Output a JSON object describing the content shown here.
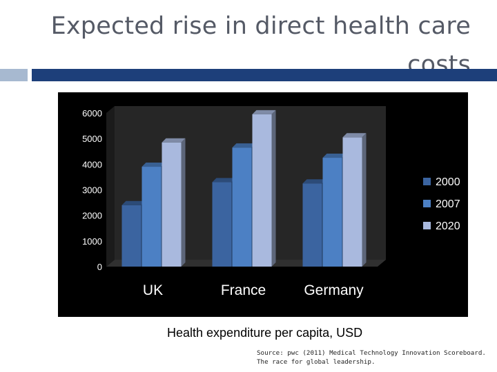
{
  "slide": {
    "title_line1": "Expected rise in direct health care",
    "title_line2": "costs",
    "caption": "Health expenditure per capita, USD",
    "source_line1": "Source: pwc (2011) Medical Technology Innovation Scoreboard.",
    "source_line2": "The race for global leadership."
  },
  "chart_data": {
    "type": "bar",
    "title": "",
    "xlabel": "",
    "ylabel": "",
    "categories": [
      "UK",
      "France",
      "Germany"
    ],
    "series": [
      {
        "name": "2000",
        "values": [
          2400,
          3300,
          3250
        ]
      },
      {
        "name": "2007",
        "values": [
          3900,
          4650,
          4250
        ]
      },
      {
        "name": "2020",
        "values": [
          4850,
          5950,
          5050
        ]
      }
    ],
    "yticks": [
      0,
      1000,
      2000,
      3000,
      4000,
      5000,
      6000
    ],
    "ylim": [
      0,
      6000
    ],
    "legend_position": "right",
    "grid": false,
    "colors": [
      "#3b64a0",
      "#4c80c4",
      "#a9b9de"
    ],
    "background": "#000000",
    "text_color": "#ffffff"
  }
}
